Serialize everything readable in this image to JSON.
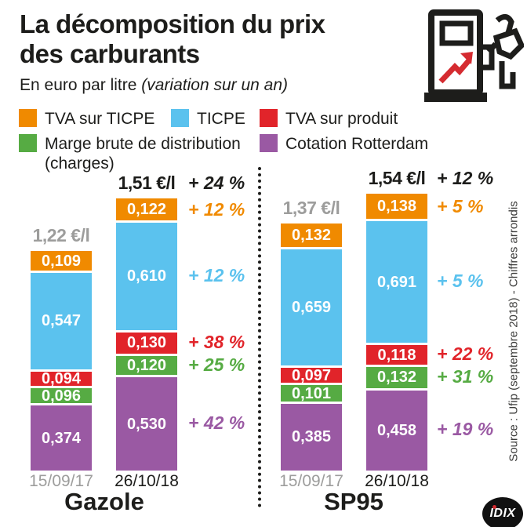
{
  "header": {
    "title": "La décomposition du prix des carburants",
    "title_line1": "La décomposition du prix",
    "title_line2": "des carburants",
    "subtitle": "En euro par litre",
    "subtitle_note": "(variation sur un an)"
  },
  "colors": {
    "ink": "#1d1d1b",
    "muted": "#9d9d9c",
    "arrow_red": "#d52b30",
    "segments": {
      "tva_ticpe": "#f08a00",
      "ticpe": "#5bc2ee",
      "tva_produit": "#e1242a",
      "marge": "#56ab43",
      "rotterdam": "#9a59a3"
    }
  },
  "legend": {
    "items": [
      {
        "key": "tva_ticpe",
        "label": "TVA sur TICPE",
        "sublabel": ""
      },
      {
        "key": "ticpe",
        "label": "TICPE",
        "sublabel": ""
      },
      {
        "key": "tva_produit",
        "label": "TVA sur produit",
        "sublabel": ""
      },
      {
        "key": "marge",
        "label": "Marge brute de distribution",
        "sublabel": "(charges)"
      },
      {
        "key": "rotterdam",
        "label": "Cotation Rotterdam",
        "sublabel": ""
      }
    ]
  },
  "chart_data": {
    "type": "bar",
    "stacked": true,
    "unit": "€/l",
    "series_order_top_to_bottom": [
      "tva_ticpe",
      "ticpe",
      "tva_produit",
      "marge",
      "rotterdam"
    ],
    "legend": [
      "TVA sur TICPE",
      "TICPE",
      "TVA sur produit",
      "Marge brute de distribution (charges)",
      "Cotation Rotterdam"
    ],
    "groups": [
      {
        "name": "Gazole",
        "bars": [
          {
            "date": "15/09/17",
            "muted": true,
            "total": 1.22,
            "total_label": "1,22 €/l",
            "total_change": "",
            "segments": [
              {
                "key": "tva_ticpe",
                "value": 0.109,
                "label": "0,109",
                "change": ""
              },
              {
                "key": "ticpe",
                "value": 0.547,
                "label": "0,547",
                "change": ""
              },
              {
                "key": "tva_produit",
                "value": 0.094,
                "label": "0,094",
                "change": ""
              },
              {
                "key": "marge",
                "value": 0.096,
                "label": "0,096",
                "change": ""
              },
              {
                "key": "rotterdam",
                "value": 0.374,
                "label": "0,374",
                "change": ""
              }
            ]
          },
          {
            "date": "26/10/18",
            "muted": false,
            "total": 1.51,
            "total_label": "1,51 €/l",
            "total_change": "+ 24 %",
            "segments": [
              {
                "key": "tva_ticpe",
                "value": 0.122,
                "label": "0,122",
                "change": "+ 12 %"
              },
              {
                "key": "ticpe",
                "value": 0.61,
                "label": "0,610",
                "change": "+ 12 %"
              },
              {
                "key": "tva_produit",
                "value": 0.13,
                "label": "0,130",
                "change": "+ 38 %"
              },
              {
                "key": "marge",
                "value": 0.12,
                "label": "0,120",
                "change": "+ 25 %"
              },
              {
                "key": "rotterdam",
                "value": 0.53,
                "label": "0,530",
                "change": "+ 42 %"
              }
            ]
          }
        ]
      },
      {
        "name": "SP95",
        "bars": [
          {
            "date": "15/09/17",
            "muted": true,
            "total": 1.37,
            "total_label": "1,37 €/l",
            "total_change": "",
            "segments": [
              {
                "key": "tva_ticpe",
                "value": 0.132,
                "label": "0,132",
                "change": ""
              },
              {
                "key": "ticpe",
                "value": 0.659,
                "label": "0,659",
                "change": ""
              },
              {
                "key": "tva_produit",
                "value": 0.097,
                "label": "0,097",
                "change": ""
              },
              {
                "key": "marge",
                "value": 0.101,
                "label": "0,101",
                "change": ""
              },
              {
                "key": "rotterdam",
                "value": 0.385,
                "label": "0,385",
                "change": ""
              }
            ]
          },
          {
            "date": "26/10/18",
            "muted": false,
            "total": 1.54,
            "total_label": "1,54 €/l",
            "total_change": "+ 12 %",
            "segments": [
              {
                "key": "tva_ticpe",
                "value": 0.138,
                "label": "0,138",
                "change": "+ 5 %"
              },
              {
                "key": "ticpe",
                "value": 0.691,
                "label": "0,691",
                "change": "+ 5 %"
              },
              {
                "key": "tva_produit",
                "value": 0.118,
                "label": "0,118",
                "change": "+ 22 %"
              },
              {
                "key": "marge",
                "value": 0.132,
                "label": "0,132",
                "change": "+ 31 %"
              },
              {
                "key": "rotterdam",
                "value": 0.458,
                "label": "0,458",
                "change": "+ 19 %"
              }
            ]
          }
        ]
      }
    ]
  },
  "source": "Source : Ufip (septembre 2018) - Chiffres arrondis",
  "logo": "IDIX"
}
